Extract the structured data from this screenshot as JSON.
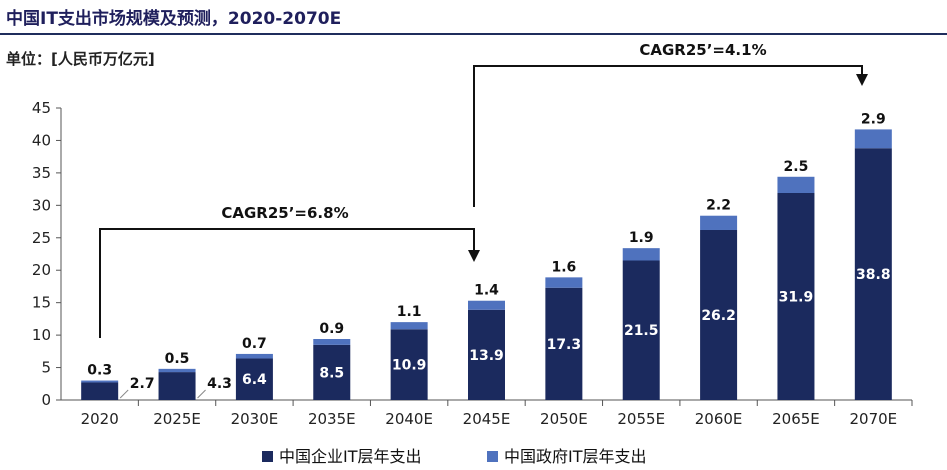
{
  "header": {
    "title": "中国IT支出市场规模及预测，2020-2070E",
    "unit": "单位：[人民币万亿元]"
  },
  "annotations": {
    "cagr_1": "CAGR25’=6.8%",
    "cagr_2": "CAGR25’=4.1%"
  },
  "colors": {
    "enterprise": "#1b2a5e",
    "government": "#4f72be"
  },
  "chart_data": {
    "type": "bar",
    "stacked": true,
    "title": "中国IT支出市场规模及预测，2020-2070E",
    "ylabel": "单位：[人民币万亿元]",
    "xlabel": "",
    "ylim": [
      0,
      45
    ],
    "yticks": [
      0,
      5,
      10,
      15,
      20,
      25,
      30,
      35,
      40,
      45
    ],
    "grid": false,
    "legend_position": "bottom",
    "categories": [
      "2020",
      "2025E",
      "2030E",
      "2035E",
      "2040E",
      "2045E",
      "2050E",
      "2055E",
      "2060E",
      "2065E",
      "2070E"
    ],
    "series": [
      {
        "name": "中国企业IT层年支出",
        "values": [
          2.7,
          4.3,
          6.4,
          8.5,
          10.9,
          13.9,
          17.3,
          21.5,
          26.2,
          31.9,
          38.8
        ]
      },
      {
        "name": "中国政府IT层年支出",
        "values": [
          0.3,
          0.5,
          0.7,
          0.9,
          1.1,
          1.4,
          1.6,
          1.9,
          2.2,
          2.5,
          2.9
        ]
      }
    ]
  }
}
